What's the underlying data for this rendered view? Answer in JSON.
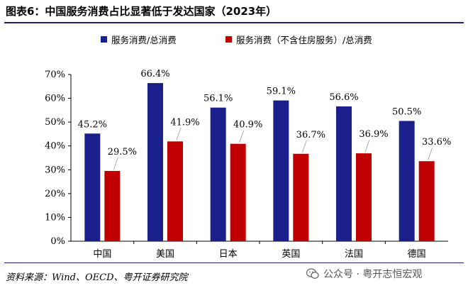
{
  "title": "图表6：中国服务消费占比显著低于发达国家（2023年）",
  "source": "资料来源：Wind、OECD、粤开证券研究院",
  "watermark": "公众号 · 粤开志恒宏观",
  "colors": {
    "series1": "#1a1f8c",
    "series2": "#c00000",
    "rule": "#1f1f6e"
  },
  "icons": {
    "watermark": "wechat-icon"
  },
  "chart_data": {
    "type": "bar",
    "categories": [
      "中国",
      "美国",
      "日本",
      "英国",
      "法国",
      "德国"
    ],
    "series": [
      {
        "name": "服务消费/总消费",
        "values": [
          45.2,
          66.4,
          56.1,
          59.1,
          56.6,
          50.5
        ],
        "labels": [
          "45.2%",
          "66.4%",
          "56.1%",
          "59.1%",
          "56.6%",
          "50.5%"
        ]
      },
      {
        "name": "服务消费（不含住房服务）/总消费",
        "values": [
          29.5,
          41.9,
          40.9,
          36.7,
          36.9,
          33.6
        ],
        "labels": [
          "29.5%",
          "41.9%",
          "40.9%",
          "36.7%",
          "36.9%",
          "33.6%"
        ]
      }
    ],
    "ylim": [
      0,
      70
    ],
    "yticks": [
      "0%",
      "10%",
      "20%",
      "30%",
      "40%",
      "50%",
      "60%",
      "70%"
    ],
    "ytick_values": [
      0,
      10,
      20,
      30,
      40,
      50,
      60,
      70
    ],
    "grid": false,
    "legend": "top"
  }
}
